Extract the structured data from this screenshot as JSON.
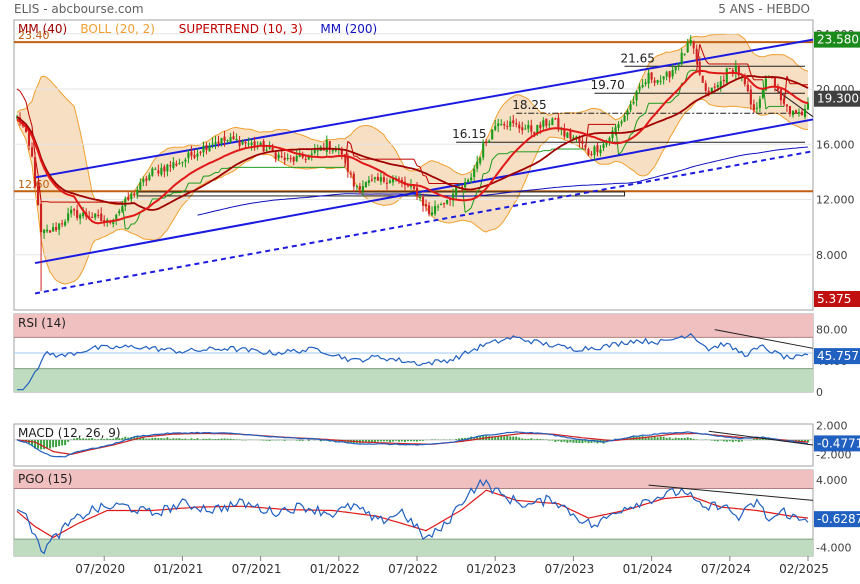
{
  "header": {
    "symbol_source": "ELIS - abcbourse.com",
    "period": "5 ANS - HEBDO"
  },
  "colors": {
    "mm40": "#a00000",
    "boll": "#f0a030",
    "supertrend": "#c00000",
    "mm200": "#1010c0",
    "candle_up": "#1a9a1a",
    "candle_down": "#d02020",
    "channel": "#1a1ae0",
    "resistance": "#c06010",
    "last_price": "#1a8a1a",
    "rsi": "#2060c0",
    "macd": "#2060c0",
    "signal": "#d02020",
    "hist": "#3aa040",
    "zone_high": "#f0c0c0",
    "zone_low": "#c0dcc0"
  },
  "chart_data": [
    {
      "type": "candlestick",
      "panel": "price",
      "legend": [
        {
          "label": "MM (40)",
          "color": "#a00000"
        },
        {
          "label": "BOLL (20, 2)",
          "color": "#f0a030"
        },
        {
          "label": "SUPERTREND (10, 3)",
          "color": "#c00000"
        },
        {
          "label": "MM (200)",
          "color": "#1010c0"
        }
      ],
      "x_tick_labels": [
        "07/2020",
        "01/2021",
        "07/2021",
        "01/2022",
        "07/2022",
        "01/2023",
        "07/2023",
        "01/2024",
        "07/2024",
        "02/2025"
      ],
      "y_ticks": [
        8.0,
        12.0,
        16.0,
        20.0,
        24.0
      ],
      "y_tick_labels": [
        "8.000",
        "12.000",
        "16.000",
        "20.000",
        "24.000"
      ],
      "ylim": [
        4.0,
        25.0
      ],
      "levels": [
        {
          "label": "23.40",
          "value": 23.4
        },
        {
          "label": "12.60",
          "value": 12.6
        }
      ],
      "annotations": [
        {
          "label": "21.65",
          "value": 21.65
        },
        {
          "label": "19.70",
          "value": 19.7
        },
        {
          "label": "18.25",
          "value": 18.25
        },
        {
          "label": "16.15",
          "value": 16.15
        }
      ],
      "badges": [
        {
          "label": "23.580",
          "value": 23.58,
          "color": "#1a8a1a"
        },
        {
          "label": "19.300",
          "value": 19.3,
          "color": "#404040"
        },
        {
          "label": "5.375",
          "value": 5.375,
          "color": "#c01010"
        }
      ],
      "close_keypoints": [
        [
          0,
          18.0
        ],
        [
          2,
          17.3
        ],
        [
          5,
          15.0
        ],
        [
          8,
          9.5
        ],
        [
          12,
          9.8
        ],
        [
          18,
          11.0
        ],
        [
          25,
          10.8
        ],
        [
          30,
          10.3
        ],
        [
          35,
          11.5
        ],
        [
          45,
          14.0
        ],
        [
          55,
          14.8
        ],
        [
          65,
          16.2
        ],
        [
          72,
          16.3
        ],
        [
          80,
          15.9
        ],
        [
          85,
          15.4
        ],
        [
          90,
          14.8
        ],
        [
          98,
          15.2
        ],
        [
          103,
          16.0
        ],
        [
          108,
          15.4
        ],
        [
          112,
          13.0
        ],
        [
          118,
          13.2
        ],
        [
          125,
          13.6
        ],
        [
          133,
          12.5
        ],
        [
          137,
          11.0
        ],
        [
          140,
          11.6
        ],
        [
          145,
          12.4
        ],
        [
          150,
          13.2
        ],
        [
          155,
          15.8
        ],
        [
          160,
          17.8
        ],
        [
          166,
          17.3
        ],
        [
          172,
          17.0
        ],
        [
          178,
          17.8
        ],
        [
          182,
          16.7
        ],
        [
          186,
          16.4
        ],
        [
          190,
          15.4
        ],
        [
          195,
          16.0
        ],
        [
          200,
          17.4
        ],
        [
          205,
          19.2
        ],
        [
          210,
          20.9
        ],
        [
          215,
          20.6
        ],
        [
          220,
          22.0
        ],
        [
          224,
          23.4
        ],
        [
          226,
          21.8
        ],
        [
          229,
          19.6
        ],
        [
          233,
          20.2
        ],
        [
          236,
          21.2
        ],
        [
          239,
          21.6
        ],
        [
          242,
          20.2
        ],
        [
          245,
          18.2
        ],
        [
          248,
          20.2
        ],
        [
          251,
          21.0
        ],
        [
          254,
          19.0
        ],
        [
          257,
          18.4
        ],
        [
          259,
          18.0
        ],
        [
          261,
          18.3
        ],
        [
          263,
          19.3
        ]
      ]
    },
    {
      "type": "line",
      "panel": "rsi",
      "title": "RSI (14)",
      "y_tick_labels": [
        "80.00",
        "40.00",
        "0"
      ],
      "y_ticks": [
        80,
        40,
        0
      ],
      "ylim": [
        0,
        100
      ],
      "zones": [
        70,
        30
      ],
      "last_value": "45.757",
      "series": [
        {
          "name": "RSI",
          "keypoints": [
            [
              0,
              3
            ],
            [
              2,
              3
            ],
            [
              4,
              12
            ],
            [
              6,
              26
            ],
            [
              10,
              50
            ],
            [
              15,
              46
            ],
            [
              25,
              56
            ],
            [
              40,
              58
            ],
            [
              55,
              52
            ],
            [
              70,
              56
            ],
            [
              85,
              50
            ],
            [
              100,
              55
            ],
            [
              112,
              40
            ],
            [
              120,
              45
            ],
            [
              135,
              36
            ],
            [
              145,
              42
            ],
            [
              155,
              60
            ],
            [
              165,
              70
            ],
            [
              175,
              62
            ],
            [
              185,
              55
            ],
            [
              195,
              58
            ],
            [
              205,
              66
            ],
            [
              215,
              64
            ],
            [
              224,
              75
            ],
            [
              230,
              55
            ],
            [
              235,
              62
            ],
            [
              242,
              48
            ],
            [
              248,
              58
            ],
            [
              252,
              50
            ],
            [
              256,
              44
            ],
            [
              260,
              44
            ],
            [
              263,
              46
            ]
          ]
        }
      ]
    },
    {
      "type": "line",
      "panel": "macd",
      "title": "MACD (12, 26, 9)",
      "y_tick_labels": [
        "2.000",
        "-2.000"
      ],
      "y_ticks": [
        2,
        -2
      ],
      "ylim": [
        -3.6,
        2.2
      ],
      "last_value": "-0.4771",
      "series": [
        {
          "name": "MACD",
          "keypoints": [
            [
              0,
              0.0
            ],
            [
              4,
              -0.5
            ],
            [
              8,
              -1.6
            ],
            [
              12,
              -2.3
            ],
            [
              16,
              -2.3
            ],
            [
              20,
              -1.6
            ],
            [
              30,
              -0.8
            ],
            [
              40,
              0.5
            ],
            [
              50,
              0.9
            ],
            [
              60,
              1.0
            ],
            [
              72,
              0.9
            ],
            [
              85,
              0.4
            ],
            [
              100,
              0.1
            ],
            [
              112,
              -0.5
            ],
            [
              125,
              -0.6
            ],
            [
              135,
              -0.7
            ],
            [
              145,
              -0.3
            ],
            [
              155,
              0.6
            ],
            [
              165,
              1.1
            ],
            [
              175,
              0.9
            ],
            [
              185,
              0.2
            ],
            [
              195,
              -0.3
            ],
            [
              205,
              0.5
            ],
            [
              215,
              0.9
            ],
            [
              224,
              1.1
            ],
            [
              232,
              0.6
            ],
            [
              240,
              0.2
            ],
            [
              248,
              0.4
            ],
            [
              255,
              -0.1
            ],
            [
              260,
              -0.3
            ],
            [
              263,
              -0.48
            ]
          ]
        },
        {
          "name": "Signal",
          "keypoints": [
            [
              0,
              0.0
            ],
            [
              6,
              -0.3
            ],
            [
              12,
              -1.6
            ],
            [
              18,
              -2.0
            ],
            [
              24,
              -1.4
            ],
            [
              32,
              -0.7
            ],
            [
              42,
              0.4
            ],
            [
              52,
              0.8
            ],
            [
              62,
              0.9
            ],
            [
              74,
              0.8
            ],
            [
              88,
              0.4
            ],
            [
              102,
              0.1
            ],
            [
              115,
              -0.3
            ],
            [
              128,
              -0.5
            ],
            [
              138,
              -0.6
            ],
            [
              148,
              -0.2
            ],
            [
              158,
              0.4
            ],
            [
              168,
              0.9
            ],
            [
              178,
              0.8
            ],
            [
              188,
              0.3
            ],
            [
              198,
              -0.1
            ],
            [
              208,
              0.3
            ],
            [
              218,
              0.8
            ],
            [
              226,
              0.9
            ],
            [
              234,
              0.6
            ],
            [
              242,
              0.3
            ],
            [
              250,
              0.2
            ],
            [
              257,
              -0.1
            ],
            [
              263,
              -0.3
            ]
          ]
        }
      ]
    },
    {
      "type": "line",
      "panel": "pgo",
      "title": "PGO (15)",
      "y_tick_labels": [
        "4.000",
        "-4.000"
      ],
      "y_ticks": [
        4,
        -4
      ],
      "ylim": [
        -5,
        5.2
      ],
      "zones": [
        3,
        -3
      ],
      "last_value": "-0.6287",
      "series": [
        {
          "name": "PGO",
          "keypoints": [
            [
              0,
              0.5
            ],
            [
              3,
              0.0
            ],
            [
              6,
              -3.0
            ],
            [
              9,
              -4.3
            ],
            [
              12,
              -3.0
            ],
            [
              18,
              -1.0
            ],
            [
              25,
              0.5
            ],
            [
              35,
              1.0
            ],
            [
              45,
              0.0
            ],
            [
              55,
              1.2
            ],
            [
              65,
              0.5
            ],
            [
              75,
              1.3
            ],
            [
              85,
              0.2
            ],
            [
              95,
              0.9
            ],
            [
              105,
              0.0
            ],
            [
              112,
              1.0
            ],
            [
              120,
              -1.0
            ],
            [
              128,
              0.3
            ],
            [
              136,
              -3.0
            ],
            [
              142,
              -1.5
            ],
            [
              150,
              2.5
            ],
            [
              155,
              3.8
            ],
            [
              162,
              2.0
            ],
            [
              170,
              1.0
            ],
            [
              178,
              1.8
            ],
            [
              186,
              -0.3
            ],
            [
              192,
              -1.5
            ],
            [
              200,
              0.5
            ],
            [
              208,
              1.5
            ],
            [
              215,
              2.2
            ],
            [
              222,
              2.8
            ],
            [
              228,
              0.5
            ],
            [
              234,
              1.2
            ],
            [
              240,
              -0.5
            ],
            [
              246,
              1.5
            ],
            [
              250,
              -0.8
            ],
            [
              255,
              0.3
            ],
            [
              260,
              -0.8
            ],
            [
              263,
              -0.63
            ]
          ]
        },
        {
          "name": "Signal",
          "keypoints": [
            [
              0,
              0.3
            ],
            [
              6,
              -1.5
            ],
            [
              12,
              -2.8
            ],
            [
              20,
              -1.2
            ],
            [
              30,
              0.4
            ],
            [
              45,
              0.4
            ],
            [
              60,
              0.8
            ],
            [
              75,
              0.9
            ],
            [
              90,
              0.5
            ],
            [
              105,
              0.4
            ],
            [
              120,
              -0.3
            ],
            [
              136,
              -2.0
            ],
            [
              148,
              0.5
            ],
            [
              156,
              2.8
            ],
            [
              166,
              1.6
            ],
            [
              180,
              1.2
            ],
            [
              190,
              -0.5
            ],
            [
              202,
              0.4
            ],
            [
              215,
              1.8
            ],
            [
              224,
              2.1
            ],
            [
              234,
              0.8
            ],
            [
              246,
              0.4
            ],
            [
              256,
              -0.2
            ],
            [
              263,
              -0.5
            ]
          ]
        }
      ]
    }
  ]
}
